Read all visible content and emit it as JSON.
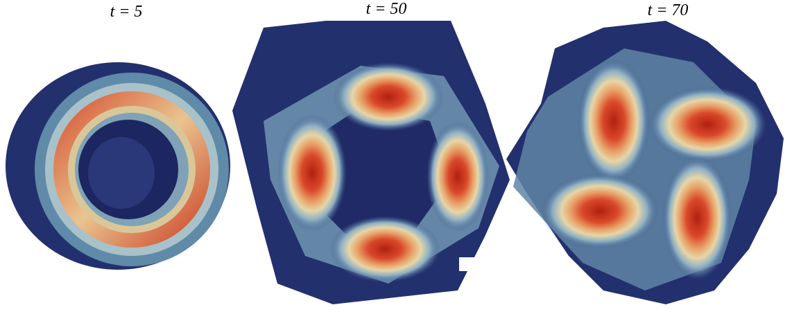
{
  "panels": [
    {
      "label": "t = 5"
    },
    {
      "label": "t = 50"
    },
    {
      "label": "t = 70"
    }
  ]
}
